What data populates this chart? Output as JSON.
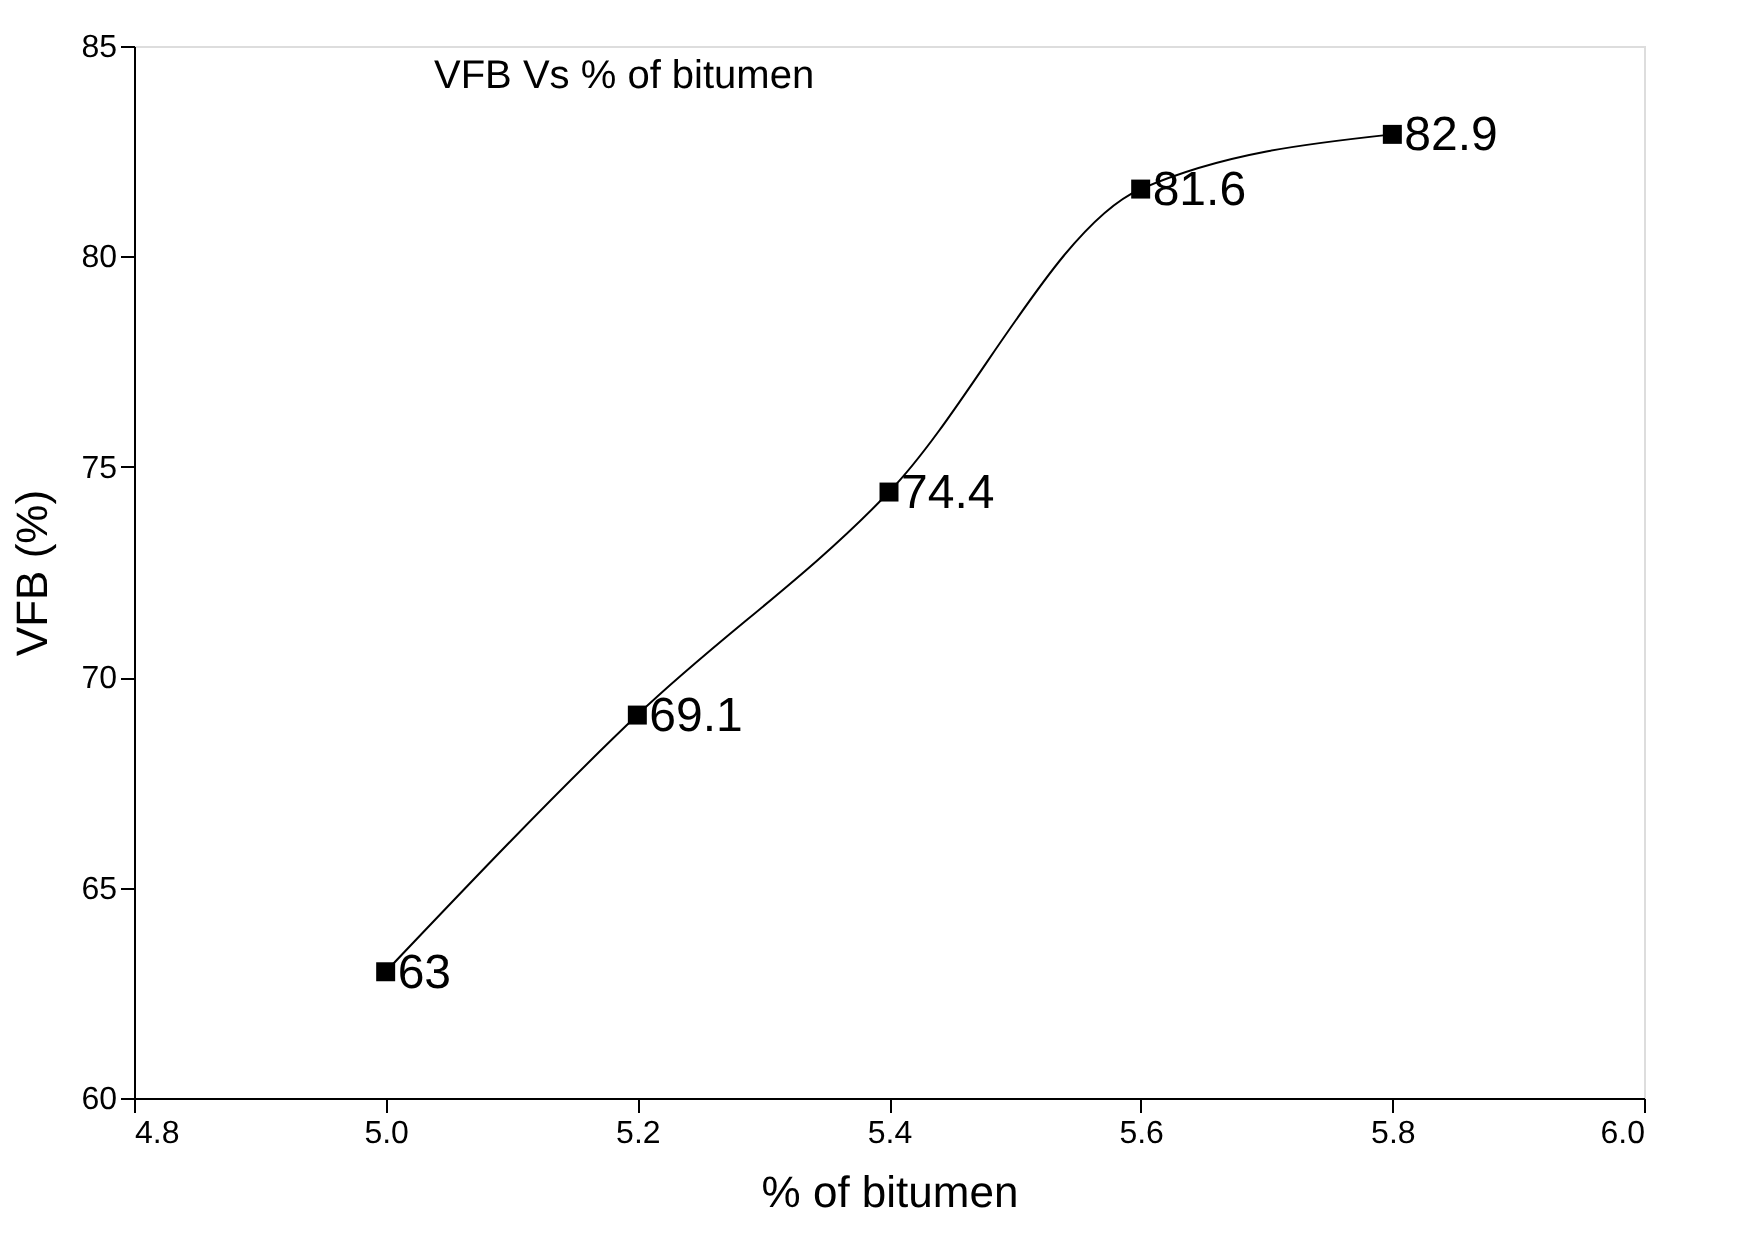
{
  "chart_data": {
    "type": "line",
    "title": "VFB Vs % of bitumen",
    "xlabel": "% of bitumen",
    "ylabel": "VFB (%)",
    "x": [
      5.0,
      5.2,
      5.4,
      5.6,
      5.8
    ],
    "series": [
      {
        "color": "#000000",
        "values": [
          63,
          69.1,
          74.4,
          81.6,
          82.9
        ]
      }
    ],
    "xlim": [
      4.8,
      6.0
    ],
    "xticks": [
      {
        "value": 4.8,
        "label": "4.8"
      },
      {
        "value": 5.0,
        "label": "5.0"
      },
      {
        "value": 5.2,
        "label": "5.2"
      },
      {
        "value": 5.4,
        "label": "5.4"
      },
      {
        "value": 5.6,
        "label": "5.6"
      },
      {
        "value": 5.8,
        "label": "5.8"
      },
      {
        "value": 6.0,
        "label": "6.0"
      }
    ],
    "ylim": [
      60,
      85
    ],
    "yticks": [
      60,
      65,
      70,
      75,
      80,
      85
    ],
    "marker": "square",
    "line_style": "solid",
    "data_labels": true,
    "grid": false
  }
}
